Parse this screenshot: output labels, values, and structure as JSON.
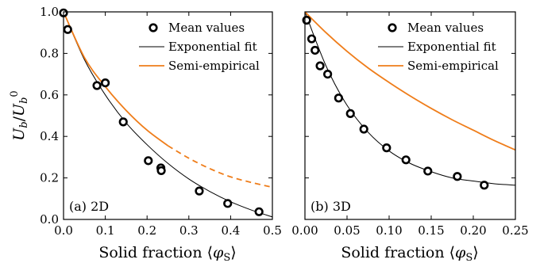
{
  "chart_data": [
    {
      "type": "scatter",
      "panel_label": "(a) 2D",
      "xlabel": "Solid fraction ⟨φS⟩",
      "ylabel": "Ub/U0b",
      "xlim": [
        0,
        0.5
      ],
      "ylim": [
        0,
        1.0
      ],
      "x_ticks": [
        0.0,
        0.1,
        0.2,
        0.3,
        0.4,
        0.5
      ],
      "x_tick_labels": [
        "0.0",
        "0.1",
        "0.2",
        "0.3",
        "0.4",
        "0.5"
      ],
      "y_ticks": [
        0.0,
        0.2,
        0.4,
        0.6,
        0.8,
        1.0
      ],
      "y_tick_labels": [
        "0.0",
        "0.2",
        "0.4",
        "0.6",
        "0.8",
        "1.0"
      ],
      "legend_position": "top-right",
      "grid": false,
      "series": [
        {
          "name": "Mean values",
          "kind": "markers",
          "color": "#000000",
          "x": [
            0.0,
            0.01,
            0.08,
            0.1,
            0.143,
            0.203,
            0.233,
            0.234,
            0.325,
            0.393,
            0.468
          ],
          "y": [
            0.995,
            0.915,
            0.645,
            0.658,
            0.47,
            0.283,
            0.248,
            0.235,
            0.137,
            0.077,
            0.037
          ]
        },
        {
          "name": "Exponential fit",
          "kind": "line",
          "color": "#000000",
          "x": [
            0.0,
            0.05,
            0.1,
            0.15,
            0.2,
            0.25,
            0.3,
            0.35,
            0.4,
            0.45,
            0.5
          ],
          "y": [
            1.0,
            0.77,
            0.6,
            0.465,
            0.36,
            0.27,
            0.195,
            0.135,
            0.085,
            0.045,
            0.012
          ]
        },
        {
          "name": "Semi-empirical",
          "kind": "line",
          "color": "#ef7d1a",
          "dashed_from_x": 0.25,
          "x": [
            0.0,
            0.05,
            0.1,
            0.15,
            0.2,
            0.25,
            0.3,
            0.35,
            0.4,
            0.45,
            0.5
          ],
          "y": [
            1.0,
            0.78,
            0.64,
            0.525,
            0.43,
            0.355,
            0.295,
            0.245,
            0.205,
            0.178,
            0.155
          ]
        }
      ]
    },
    {
      "type": "scatter",
      "panel_label": "(b) 3D",
      "xlabel": "Solid fraction ⟨φS⟩",
      "xlim": [
        0,
        0.25
      ],
      "ylim": [
        0,
        1.0
      ],
      "x_ticks": [
        0.0,
        0.05,
        0.1,
        0.15,
        0.2,
        0.25
      ],
      "x_tick_labels": [
        "0.00",
        "0.05",
        "0.10",
        "0.15",
        "0.20",
        "0.25"
      ],
      "y_ticks": [
        0.0,
        0.2,
        0.4,
        0.6,
        0.8,
        1.0
      ],
      "legend_position": "top-right",
      "grid": false,
      "series": [
        {
          "name": "Mean values",
          "kind": "markers",
          "color": "#000000",
          "x": [
            0.002,
            0.008,
            0.012,
            0.018,
            0.027,
            0.04,
            0.054,
            0.07,
            0.097,
            0.12,
            0.146,
            0.181,
            0.213
          ],
          "y": [
            0.96,
            0.87,
            0.815,
            0.74,
            0.7,
            0.585,
            0.51,
            0.435,
            0.345,
            0.287,
            0.233,
            0.207,
            0.165
          ]
        },
        {
          "name": "Exponential fit",
          "kind": "line",
          "color": "#000000",
          "x": [
            0.0,
            0.025,
            0.05,
            0.075,
            0.1,
            0.125,
            0.15,
            0.175,
            0.2,
            0.225,
            0.25
          ],
          "y": [
            1.0,
            0.74,
            0.55,
            0.42,
            0.33,
            0.27,
            0.23,
            0.2,
            0.185,
            0.172,
            0.165
          ]
        },
        {
          "name": "Semi-empirical",
          "kind": "line",
          "color": "#ef7d1a",
          "x": [
            0.0,
            0.025,
            0.05,
            0.075,
            0.1,
            0.125,
            0.15,
            0.175,
            0.2,
            0.225,
            0.25
          ],
          "y": [
            1.0,
            0.9,
            0.81,
            0.73,
            0.66,
            0.595,
            0.535,
            0.48,
            0.43,
            0.38,
            0.335
          ]
        }
      ]
    }
  ]
}
